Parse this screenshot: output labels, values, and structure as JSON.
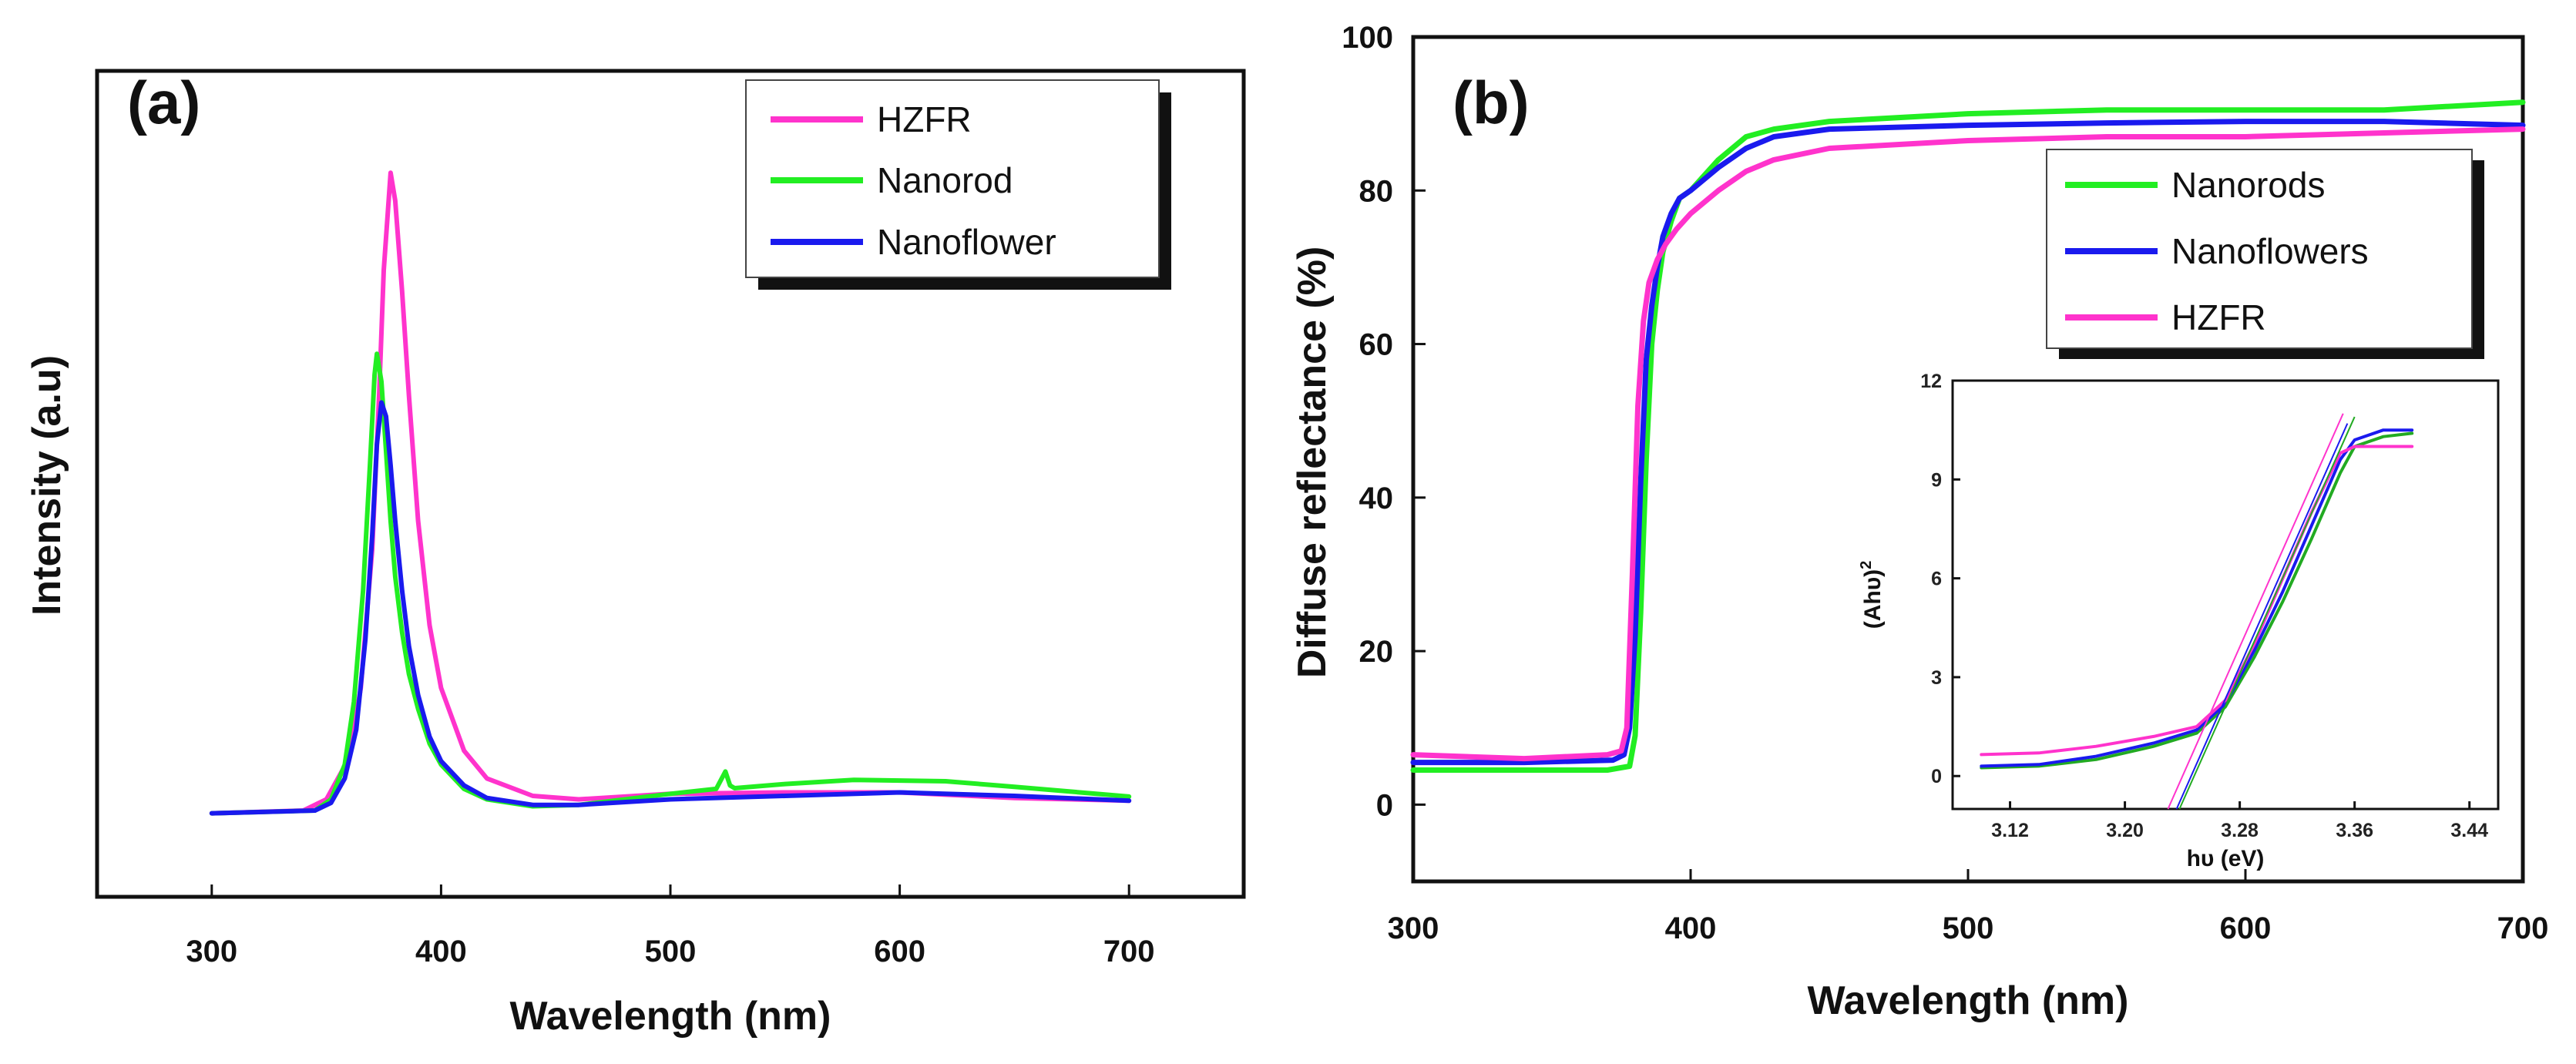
{
  "chart_data": [
    {
      "panel": "(a)",
      "type": "line",
      "title": "",
      "xlabel": "Wavelength (nm)",
      "ylabel": "Intensity (a.u)",
      "xlim": [
        250,
        750
      ],
      "ylim": [
        -0.12,
        1.0
      ],
      "xticks": [
        300,
        400,
        500,
        600,
        700
      ],
      "xtick_labels": [
        "300",
        "400",
        "500",
        "600",
        "700"
      ],
      "yticks": [],
      "grid": false,
      "legend_position": "top-right",
      "series": [
        {
          "name": "HZFR",
          "color": "#ff33cc",
          "x": [
            300,
            340,
            350,
            360,
            365,
            370,
            373,
            375,
            378,
            380,
            383,
            386,
            390,
            395,
            400,
            410,
            420,
            440,
            460,
            500,
            550,
            600,
            650,
            700
          ],
          "y": [
            0.0,
            0.004,
            0.02,
            0.08,
            0.18,
            0.38,
            0.6,
            0.78,
            0.92,
            0.88,
            0.75,
            0.6,
            0.42,
            0.27,
            0.18,
            0.09,
            0.05,
            0.025,
            0.02,
            0.028,
            0.03,
            0.03,
            0.022,
            0.018
          ]
        },
        {
          "name": "Nanorod",
          "color": "#22ee22",
          "x": [
            300,
            345,
            352,
            358,
            362,
            366,
            369,
            371,
            372,
            374,
            376,
            378,
            380,
            383,
            386,
            390,
            395,
            400,
            410,
            420,
            440,
            460,
            500,
            520,
            524,
            526,
            528,
            550,
            580,
            620,
            650,
            700
          ],
          "y": [
            0.0,
            0.004,
            0.02,
            0.07,
            0.16,
            0.32,
            0.5,
            0.63,
            0.66,
            0.62,
            0.52,
            0.42,
            0.34,
            0.26,
            0.2,
            0.15,
            0.1,
            0.07,
            0.035,
            0.02,
            0.01,
            0.012,
            0.028,
            0.035,
            0.06,
            0.04,
            0.036,
            0.042,
            0.048,
            0.046,
            0.038,
            0.024
          ]
        },
        {
          "name": "Nanoflower",
          "color": "#1a1aee",
          "x": [
            300,
            345,
            352,
            358,
            363,
            367,
            370,
            372,
            374,
            376,
            378,
            380,
            383,
            386,
            390,
            395,
            400,
            410,
            420,
            440,
            460,
            500,
            550,
            600,
            650,
            700
          ],
          "y": [
            0.0,
            0.004,
            0.015,
            0.05,
            0.12,
            0.25,
            0.4,
            0.53,
            0.59,
            0.57,
            0.5,
            0.42,
            0.32,
            0.24,
            0.17,
            0.11,
            0.075,
            0.04,
            0.022,
            0.012,
            0.012,
            0.02,
            0.025,
            0.03,
            0.025,
            0.018
          ]
        }
      ]
    },
    {
      "panel": "(b)",
      "type": "line",
      "title": "",
      "xlabel": "Wavelength (nm)",
      "ylabel": "Diffuse reflectance (%)",
      "xlim": [
        300,
        700
      ],
      "ylim": [
        -10,
        100
      ],
      "xticks": [
        300,
        400,
        500,
        600,
        700
      ],
      "xtick_labels": [
        "300",
        "400",
        "500",
        "600",
        "700"
      ],
      "yticks": [
        0,
        20,
        40,
        60,
        80,
        100
      ],
      "ytick_labels": [
        "0",
        "20",
        "40",
        "60",
        "80",
        "100"
      ],
      "grid": false,
      "legend_position": "top-right",
      "series": [
        {
          "name": "Nanorods",
          "color": "#22ee22",
          "x": [
            300,
            340,
            370,
            378,
            380,
            382,
            384,
            386,
            388,
            390,
            393,
            396,
            400,
            410,
            420,
            430,
            450,
            500,
            550,
            600,
            650,
            700
          ],
          "y": [
            4.5,
            4.5,
            4.5,
            5,
            9,
            25,
            45,
            60,
            67,
            72,
            76,
            79,
            80,
            84,
            87,
            88,
            89,
            90,
            90.5,
            90.5,
            90.5,
            91.5
          ]
        },
        {
          "name": "Nanoflowers",
          "color": "#1a1aee",
          "x": [
            300,
            340,
            372,
            376,
            378,
            380,
            382,
            384,
            386,
            388,
            390,
            393,
            396,
            400,
            410,
            420,
            430,
            450,
            500,
            550,
            600,
            650,
            700
          ],
          "y": [
            5.5,
            5.5,
            5.8,
            6.5,
            10,
            22,
            42,
            58,
            65,
            70,
            74,
            77,
            79,
            80,
            83,
            85.5,
            87,
            88,
            88.5,
            88.8,
            89,
            89,
            88.5
          ]
        },
        {
          "name": "HZFR",
          "color": "#ff33cc",
          "x": [
            300,
            340,
            370,
            375,
            377,
            379,
            381,
            383,
            385,
            388,
            391,
            395,
            400,
            410,
            420,
            430,
            450,
            500,
            550,
            600,
            650,
            700
          ],
          "y": [
            6.5,
            6,
            6.5,
            7,
            10,
            30,
            52,
            63,
            68,
            71,
            73,
            75,
            77,
            80,
            82.5,
            84,
            85.5,
            86.5,
            87,
            87,
            87.5,
            88
          ]
        }
      ]
    },
    {
      "panel": "(b)-inset",
      "type": "line",
      "title": "",
      "xlabel": "hυ (eV)",
      "ylabel": "(Ahυ)2",
      "ylabel_base": "(Ahυ)",
      "ylabel_sup": "2",
      "xlim": [
        3.08,
        3.46
      ],
      "ylim": [
        -1,
        12
      ],
      "xticks": [
        3.12,
        3.2,
        3.28,
        3.36,
        3.44
      ],
      "xtick_labels": [
        "3.12",
        "3.20",
        "3.28",
        "3.36",
        "3.44"
      ],
      "yticks": [
        0,
        3,
        6,
        9,
        12
      ],
      "ytick_labels": [
        "0",
        "3",
        "6",
        "9",
        "12"
      ],
      "grid": false,
      "series": [
        {
          "name": "Nanorods",
          "color": "#22aa22",
          "x": [
            3.1,
            3.14,
            3.18,
            3.22,
            3.25,
            3.27,
            3.29,
            3.31,
            3.33,
            3.35,
            3.36,
            3.38,
            3.4
          ],
          "y": [
            0.25,
            0.3,
            0.5,
            0.9,
            1.3,
            2.1,
            3.6,
            5.3,
            7.2,
            9.2,
            10.0,
            10.3,
            10.4
          ]
        },
        {
          "name": "Nanoflowers",
          "color": "#1a1aee",
          "x": [
            3.1,
            3.14,
            3.18,
            3.22,
            3.25,
            3.27,
            3.29,
            3.31,
            3.33,
            3.35,
            3.36,
            3.38,
            3.4
          ],
          "y": [
            0.3,
            0.35,
            0.6,
            1.0,
            1.4,
            2.2,
            3.8,
            5.6,
            7.6,
            9.6,
            10.2,
            10.5,
            10.5
          ]
        },
        {
          "name": "HZFR",
          "color": "#ff33cc",
          "x": [
            3.1,
            3.14,
            3.18,
            3.22,
            3.25,
            3.27,
            3.29,
            3.31,
            3.33,
            3.35,
            3.36,
            3.38,
            3.4
          ],
          "y": [
            0.65,
            0.7,
            0.9,
            1.2,
            1.5,
            2.3,
            4.0,
            6.0,
            8.0,
            9.8,
            10.0,
            10.0,
            10.0
          ]
        }
      ],
      "fit_lines": [
        {
          "name": "Nanorods fit",
          "color": "#22aa22",
          "x": [
            3.238,
            3.36
          ],
          "y": [
            -1,
            10.9
          ]
        },
        {
          "name": "Nanoflowers fit",
          "color": "#1a1aee",
          "x": [
            3.236,
            3.355
          ],
          "y": [
            -1,
            10.7
          ]
        },
        {
          "name": "HZFR fit",
          "color": "#ff33cc",
          "x": [
            3.23,
            3.352
          ],
          "y": [
            -1,
            11.0
          ]
        }
      ]
    }
  ]
}
